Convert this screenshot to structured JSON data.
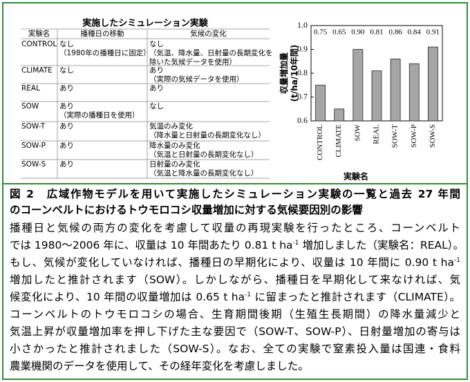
{
  "table": {
    "title": "実施したシミュレーション実験",
    "header": [
      "実験名",
      "播種日の移動",
      "気候の変化"
    ],
    "rows": [
      [
        "CONTROL",
        [
          "なし",
          "（1980年の播種日に固定）"
        ],
        [
          "なし",
          "（気温、降水量、日射量の長期変化を",
          "除いた気候データを使用）"
        ]
      ],
      [
        "CLIMATE",
        [
          "なし"
        ],
        [
          "あり",
          "（実際の気候データを使用）"
        ]
      ],
      [
        "REAL",
        [
          "あり"
        ],
        [
          "あり"
        ]
      ],
      [
        "SOW",
        [
          "あり",
          "（実際の播種日を使用）"
        ],
        [
          "なし"
        ]
      ],
      [
        "SOW-T",
        [
          "あり"
        ],
        [
          "気温のみ変化",
          "（降水量と日射量の長期変化なし）"
        ]
      ],
      [
        "SOW-P",
        [
          "あり"
        ],
        [
          "降水量のみ変化",
          "（気温と日射量の長期変化なし）"
        ]
      ],
      [
        "SOW-S",
        [
          "あり"
        ],
        [
          "日射量のみ変化",
          "（気温と降水量の長期変化なし）"
        ]
      ]
    ]
  },
  "chart_data": {
    "type": "bar",
    "y_label": [
      "収量増加量",
      "(t/ha/10年間)"
    ],
    "x_label": "実験名",
    "categories": [
      "CONTROL",
      "CLIMATE",
      "SOW",
      "REAL",
      "SOW-T",
      "SOW-P",
      "SOW-S"
    ],
    "values": [
      0.75,
      0.65,
      0.9,
      0.81,
      0.86,
      0.84,
      0.91
    ],
    "value_labels": [
      "0.75",
      "0.65",
      "0.90",
      "0.81",
      "0.86",
      "0.84",
      "0.91"
    ],
    "color": "#a6a6a6",
    "ylim": [
      0.6,
      1.0
    ],
    "yticks": [
      0.6,
      0.7,
      0.8,
      0.9,
      {
        "value": 1.0,
        "label": "1.0"
      }
    ]
  },
  "caption": {
    "title": [
      "図 2　広域作物モデルを用いて実施したシミュレーション実験の一覧と過去 27 年間",
      "のコーンベルトにおけるトウモロコシ収量増加に対する気候要因別の影響"
    ],
    "body": [
      [
        "播種日と気候の両方の変化を考慮して収量の再現実験を行ったところ、コーンベルト"
      ],
      [
        "では 1980～2006 年に、収量は 10 年間あたり 0.81 t ha",
        {
          "sup": "-1"
        },
        " 増加しました（実験名：REAL）。"
      ],
      [
        "もし、気候が変化していなければ、播種日の早期化により、収量は 10 年間に 0.90 t ha",
        {
          "sup": "-1"
        }
      ],
      [
        "増加したと推計されます（SOW）。しかしながら、播種日を早期化して来なければ、気"
      ],
      [
        "候変化により、10 年間の収量増加は 0.65 t ha",
        {
          "sup": "-1"
        },
        " に留まったと推計されます（CLIMATE）。"
      ],
      [
        "コーンベルトのトウモロコシの場合、生育期間後期（生殖生長期間）の降水量減少と"
      ],
      [
        "気温上昇が収量増加率を押し下げた主な要因で（SOW-T、SOW-P）、日射量増加の寄与は"
      ],
      [
        "小さかったと推計されました（SOW-S）。なお、全ての実験で窒素投入量は国連・食料"
      ],
      [
        "農業機関のデータを使用して、その経年変化を考慮しました。"
      ]
    ]
  }
}
